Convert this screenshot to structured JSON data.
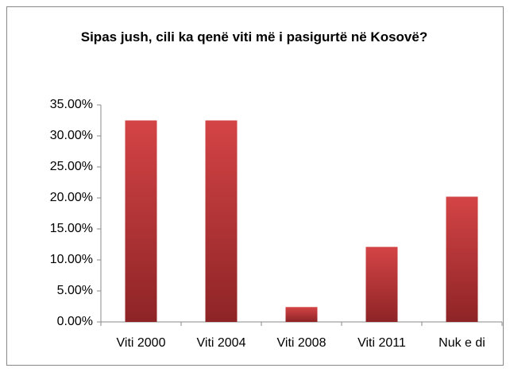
{
  "chart_data": {
    "type": "bar",
    "title": "Sipas jush, cili ka qenë viti më i pasigurtë në Kosovë?",
    "categories": [
      "Viti 2000",
      "Viti 2004",
      "Viti 2008",
      "Viti 2011",
      "Nuk e di"
    ],
    "values": [
      32.5,
      32.5,
      2.4,
      12.1,
      20.2
    ],
    "color": "#c0393b",
    "ylim": [
      0,
      35
    ],
    "yticks": [
      {
        "value": 0,
        "label": "0.00%"
      },
      {
        "value": 5,
        "label": "5.00%"
      },
      {
        "value": 10,
        "label": "10.00%"
      },
      {
        "value": 15,
        "label": "15.00%"
      },
      {
        "value": 20,
        "label": "20.00%"
      },
      {
        "value": 25,
        "label": "25.00%"
      },
      {
        "value": 30,
        "label": "30.00%"
      },
      {
        "value": 35,
        "label": "35.00%"
      }
    ],
    "grid": false
  }
}
